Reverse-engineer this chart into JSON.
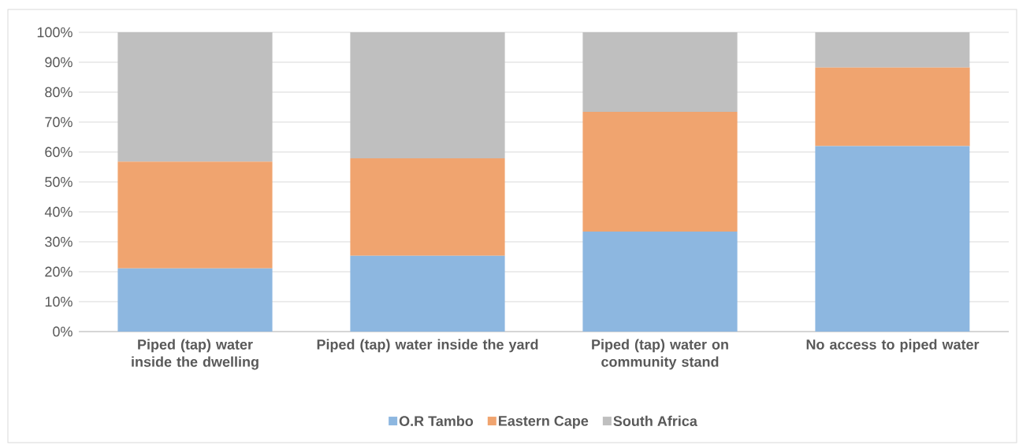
{
  "chart_data": {
    "type": "bar",
    "stacked": true,
    "categories": [
      "Piped (tap) water inside the dwelling",
      "Piped (tap) water inside the yard",
      "Piped (tap) water on community stand",
      "No access to piped water"
    ],
    "series": [
      {
        "name": "O.R Tambo",
        "color": "#8db7e0",
        "values": [
          21.1,
          25.3,
          33.4,
          62.0
        ]
      },
      {
        "name": "Eastern Cape",
        "color": "#f0a46f",
        "values": [
          35.7,
          32.6,
          40.0,
          26.2
        ]
      },
      {
        "name": "South Africa",
        "color": "#bfbfbf",
        "values": [
          43.2,
          42.1,
          26.6,
          11.8
        ]
      }
    ],
    "ylim": [
      0,
      100
    ],
    "yticks": [
      {
        "value": 0,
        "label": "0%"
      },
      {
        "value": 10,
        "label": "10%"
      },
      {
        "value": 20,
        "label": "20%"
      },
      {
        "value": 30,
        "label": "30%"
      },
      {
        "value": 40,
        "label": "40%"
      },
      {
        "value": 50,
        "label": "50%"
      },
      {
        "value": 60,
        "label": "60%"
      },
      {
        "value": 70,
        "label": "70%"
      },
      {
        "value": 80,
        "label": "80%"
      },
      {
        "value": 90,
        "label": "90%"
      },
      {
        "value": 100,
        "label": "100%"
      }
    ],
    "grid": "y",
    "legend": "bottom"
  }
}
